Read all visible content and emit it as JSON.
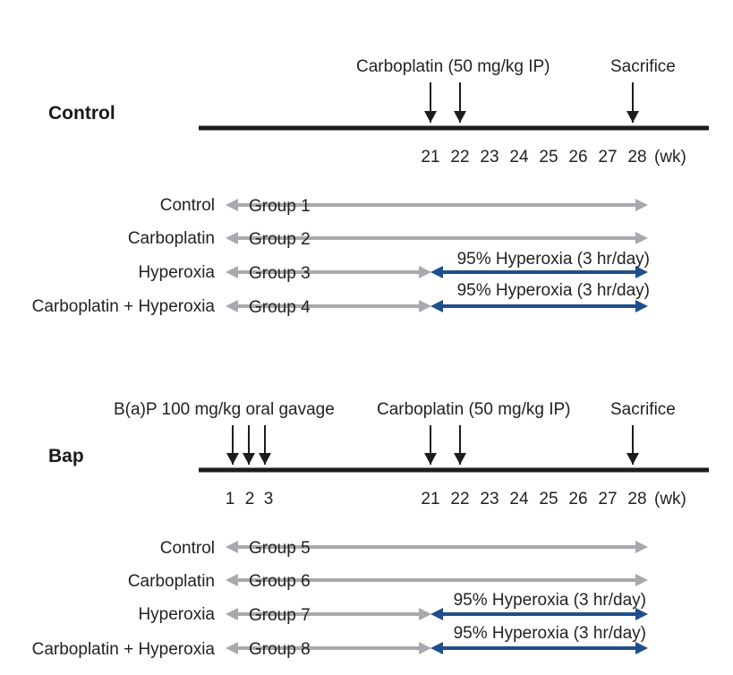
{
  "colors": {
    "timeline": "#1c1c1c",
    "gray_arrow": "#a7a9ac",
    "blue_arrow": "#1f4e8c",
    "text": "#222222"
  },
  "panels": [
    {
      "title": "Control",
      "bap_label": "",
      "bap_weeks": [],
      "carboplatin_label": "Carboplatin (50 mg/kg IP)",
      "carboplatin_weeks": [
        21,
        22
      ],
      "sacrifice_label": "Sacrifice",
      "sacrifice_week": 28,
      "tick_labels": [
        "21",
        "22",
        "23",
        "24",
        "25",
        "26",
        "27",
        "28"
      ],
      "unit": "(wk)",
      "groups": [
        {
          "treatment": "Control",
          "group": "Group 1",
          "hyperoxia": ""
        },
        {
          "treatment": "Carboplatin",
          "group": "Group 2",
          "hyperoxia": ""
        },
        {
          "treatment": "Hyperoxia",
          "group": "Group 3",
          "hyperoxia": "95% Hyperoxia (3 hr/day)"
        },
        {
          "treatment": "Carboplatin + Hyperoxia",
          "group": "Group 4",
          "hyperoxia": "95% Hyperoxia (3 hr/day)"
        }
      ]
    },
    {
      "title": "Bap",
      "bap_label": "B(a)P 100 mg/kg oral gavage",
      "bap_weeks": [
        1,
        2,
        3
      ],
      "carboplatin_label": "Carboplatin (50 mg/kg IP)",
      "carboplatin_weeks": [
        21,
        22
      ],
      "sacrifice_label": "Sacrifice",
      "sacrifice_week": 28,
      "early_tick_labels": [
        "1",
        "2",
        "3"
      ],
      "tick_labels": [
        "21",
        "22",
        "23",
        "24",
        "25",
        "26",
        "27",
        "28"
      ],
      "unit": "(wk)",
      "groups": [
        {
          "treatment": "Control",
          "group": "Group 5",
          "hyperoxia": ""
        },
        {
          "treatment": "Carboplatin",
          "group": "Group 6",
          "hyperoxia": ""
        },
        {
          "treatment": "Hyperoxia",
          "group": "Group 7",
          "hyperoxia": "95% Hyperoxia (3 hr/day)"
        },
        {
          "treatment": "Carboplatin + Hyperoxia",
          "group": "Group 8",
          "hyperoxia": "95% Hyperoxia (3 hr/day)"
        }
      ]
    }
  ]
}
